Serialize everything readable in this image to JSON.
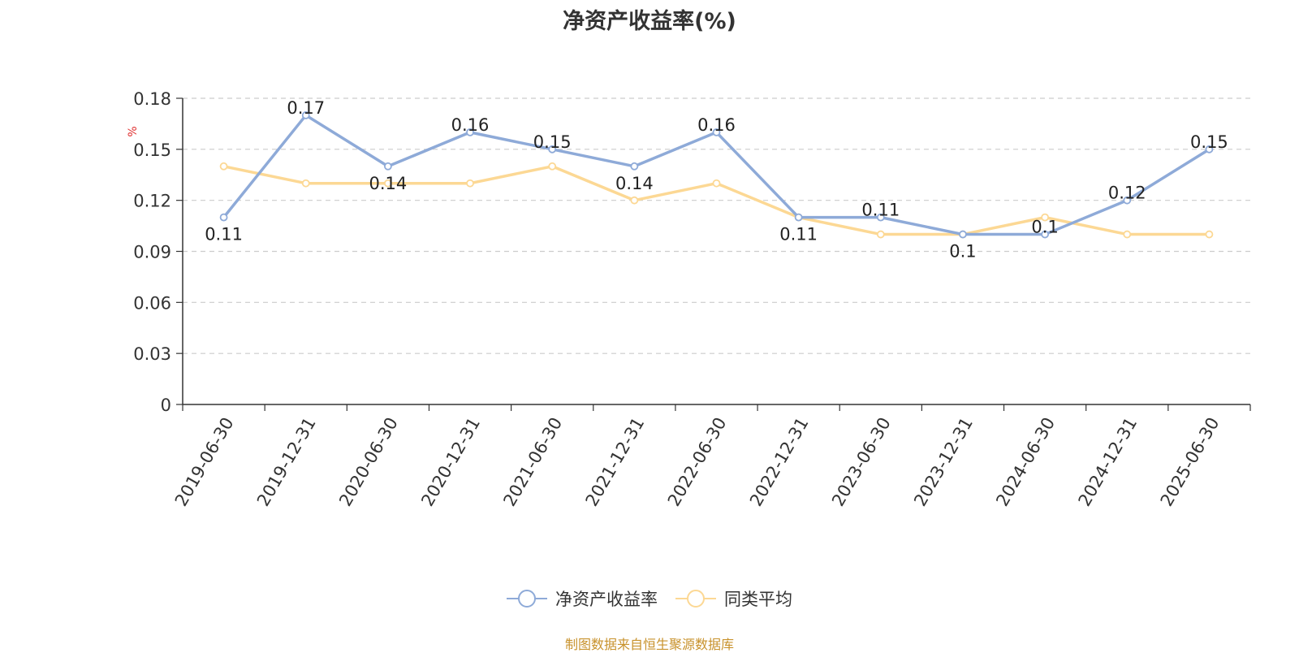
{
  "chart_data": {
    "type": "line",
    "title": "净资产收益率(%)",
    "ylabel": "%",
    "xlabel": "",
    "categories": [
      "2019-06-30",
      "2019-12-31",
      "2020-06-30",
      "2020-12-31",
      "2021-06-30",
      "2021-12-31",
      "2022-06-30",
      "2022-12-31",
      "2023-06-30",
      "2023-12-31",
      "2024-06-30",
      "2024-12-31",
      "2025-06-30"
    ],
    "yticks": [
      "0",
      "0.03",
      "0.06",
      "0.09",
      "0.12",
      "0.15",
      "0.18"
    ],
    "ylim": [
      0,
      0.18
    ],
    "grid": true,
    "legend_position": "bottom",
    "series": [
      {
        "name": "净资产收益率",
        "color": "#8eaad8",
        "values": [
          0.11,
          0.17,
          0.14,
          0.16,
          0.15,
          0.14,
          0.16,
          0.11,
          0.11,
          0.1,
          0.1,
          0.12,
          0.15
        ],
        "labels": [
          "0.11",
          "0.17",
          "0.14",
          "0.16",
          "0.15",
          "0.14",
          "0.16",
          "0.11",
          "0.11",
          "0.1",
          "0.1",
          "0.12",
          "0.15"
        ]
      },
      {
        "name": "同类平均",
        "color": "#fcd894",
        "values": [
          0.14,
          0.13,
          0.13,
          0.13,
          0.14,
          0.12,
          0.13,
          0.11,
          0.1,
          0.1,
          0.11,
          0.1,
          0.1
        ]
      }
    ]
  },
  "footer": {
    "source": "制图数据来自恒生聚源数据库"
  }
}
